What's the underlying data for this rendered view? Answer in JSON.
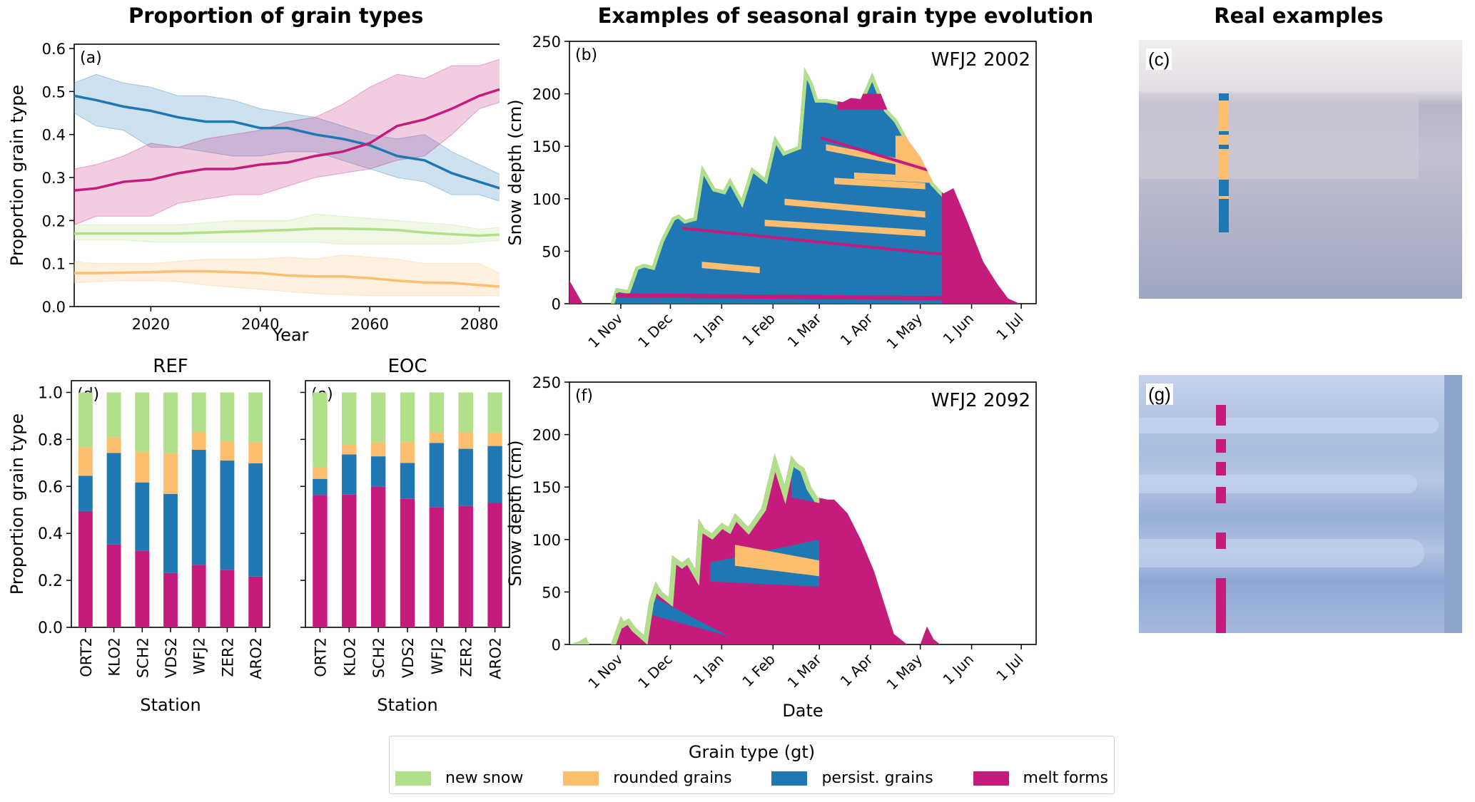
{
  "titles": {
    "left": "Proportion of grain types",
    "middle": "Examples of seasonal grain type evolution",
    "right": "Real examples"
  },
  "colors": {
    "new_snow": "#b2df8a",
    "rounded_grains": "#fdbf6f",
    "persist_grains": "#1f78b4",
    "melt_forms": "#c51b7d"
  },
  "legend": {
    "title": "Grain type (gt)",
    "items": [
      {
        "key": "new_snow",
        "label": "new snow"
      },
      {
        "key": "rounded_grains",
        "label": "rounded grains"
      },
      {
        "key": "persist_grains",
        "label": "persist. grains"
      },
      {
        "key": "melt_forms",
        "label": "melt forms"
      }
    ]
  },
  "photos": {
    "c": {
      "label": "(c)",
      "profile_colors": [
        "persist_grains",
        "rounded_grains",
        "persist_grains",
        "rounded_grains",
        "persist_grains",
        "rounded_grains",
        "persist_grains",
        "rounded_grains",
        "persist_grains"
      ],
      "profile_fractions": [
        0.05,
        0.22,
        0.03,
        0.07,
        0.03,
        0.22,
        0.12,
        0.02,
        0.24
      ]
    },
    "g": {
      "label": "(g)",
      "profile_segments": [
        [
          0.0,
          0.09
        ],
        [
          0.15,
          0.21
        ],
        [
          0.25,
          0.31
        ],
        [
          0.36,
          0.43
        ],
        [
          0.56,
          0.63
        ],
        [
          0.76,
          1.0
        ]
      ]
    }
  },
  "chart_data": [
    {
      "id": "a",
      "panel_label": "(a)",
      "type": "line",
      "title": "",
      "xlabel": "Year",
      "ylabel": "Proportion grain type",
      "xlim": [
        2006,
        2085
      ],
      "ylim": [
        0.0,
        0.61
      ],
      "xticks": [
        2020,
        2040,
        2060,
        2080
      ],
      "yticks": [
        0.0,
        0.1,
        0.2,
        0.3,
        0.4,
        0.5,
        0.6
      ],
      "ytick_labels": [
        "0.0",
        "0.1",
        "0.2",
        "0.3",
        "0.4",
        "0.5",
        "0.6"
      ],
      "x": [
        2006,
        2010,
        2015,
        2020,
        2025,
        2030,
        2035,
        2040,
        2045,
        2050,
        2055,
        2060,
        2065,
        2070,
        2075,
        2080,
        2085
      ],
      "series": [
        {
          "name": "persist. grains",
          "color_key": "persist_grains",
          "values": [
            0.49,
            0.48,
            0.465,
            0.455,
            0.44,
            0.43,
            0.43,
            0.415,
            0.415,
            0.4,
            0.39,
            0.375,
            0.35,
            0.34,
            0.31,
            0.29,
            0.27
          ],
          "upper": [
            0.52,
            0.54,
            0.52,
            0.51,
            0.49,
            0.49,
            0.48,
            0.46,
            0.45,
            0.44,
            0.42,
            0.4,
            0.39,
            0.4,
            0.36,
            0.33,
            0.3
          ],
          "lower": [
            0.45,
            0.42,
            0.41,
            0.37,
            0.37,
            0.36,
            0.35,
            0.35,
            0.36,
            0.36,
            0.34,
            0.32,
            0.3,
            0.29,
            0.26,
            0.26,
            0.24
          ]
        },
        {
          "name": "melt forms",
          "color_key": "melt_forms",
          "values": [
            0.27,
            0.275,
            0.29,
            0.295,
            0.31,
            0.32,
            0.32,
            0.33,
            0.335,
            0.35,
            0.36,
            0.38,
            0.42,
            0.435,
            0.46,
            0.49,
            0.51
          ],
          "upper": [
            0.32,
            0.33,
            0.35,
            0.38,
            0.37,
            0.39,
            0.4,
            0.41,
            0.43,
            0.44,
            0.47,
            0.51,
            0.54,
            0.53,
            0.56,
            0.56,
            0.58
          ],
          "lower": [
            0.19,
            0.21,
            0.21,
            0.21,
            0.24,
            0.25,
            0.26,
            0.26,
            0.28,
            0.3,
            0.31,
            0.32,
            0.34,
            0.35,
            0.4,
            0.46,
            0.48
          ]
        },
        {
          "name": "new snow",
          "color_key": "new_snow",
          "values": [
            0.17,
            0.17,
            0.17,
            0.17,
            0.17,
            0.172,
            0.174,
            0.176,
            0.178,
            0.181,
            0.181,
            0.18,
            0.178,
            0.172,
            0.168,
            0.165,
            0.168
          ],
          "upper": [
            0.19,
            0.19,
            0.19,
            0.19,
            0.19,
            0.195,
            0.2,
            0.2,
            0.2,
            0.215,
            0.21,
            0.205,
            0.2,
            0.195,
            0.19,
            0.18,
            0.185
          ],
          "lower": [
            0.155,
            0.155,
            0.155,
            0.15,
            0.15,
            0.15,
            0.15,
            0.15,
            0.15,
            0.15,
            0.145,
            0.145,
            0.145,
            0.145,
            0.145,
            0.15,
            0.155
          ]
        },
        {
          "name": "rounded grains",
          "color_key": "rounded_grains",
          "values": [
            0.078,
            0.078,
            0.079,
            0.08,
            0.082,
            0.082,
            0.08,
            0.078,
            0.072,
            0.07,
            0.07,
            0.066,
            0.06,
            0.056,
            0.055,
            0.05,
            0.045
          ],
          "upper": [
            0.105,
            0.1,
            0.1,
            0.1,
            0.105,
            0.11,
            0.11,
            0.11,
            0.115,
            0.11,
            0.12,
            0.115,
            0.11,
            0.1,
            0.1,
            0.1,
            0.07
          ],
          "lower": [
            0.055,
            0.058,
            0.06,
            0.06,
            0.058,
            0.05,
            0.045,
            0.04,
            0.035,
            0.03,
            0.028,
            0.025,
            0.025,
            0.025,
            0.025,
            0.025,
            0.025
          ]
        }
      ]
    },
    {
      "id": "b",
      "panel_label": "(b)",
      "annotation": "WFJ2 2002",
      "type": "area",
      "xlabel": "",
      "ylabel": "Snow depth (cm)",
      "ylim": [
        0,
        250
      ],
      "yticks": [
        0,
        50,
        100,
        150,
        200,
        250
      ],
      "xtick_labels": [
        "1 Nov",
        "1 Dec",
        "1 Jan",
        "1 Feb",
        "1 Mar",
        "1 Apr",
        "1 May",
        "1 Jun",
        "1 Jul"
      ],
      "x_days_from_oct1": [
        0,
        8,
        25,
        28,
        35,
        40,
        45,
        50,
        55,
        62,
        66,
        70,
        75,
        80,
        88,
        93,
        97,
        104,
        110,
        118,
        124,
        130,
        138,
        142,
        147,
        150,
        155,
        165,
        170,
        176,
        183,
        192,
        198,
        205,
        212,
        220,
        226,
        232,
        240,
        245,
        250,
        258,
        265,
        272,
        278
      ],
      "total_depth": [
        22,
        0,
        0,
        15,
        13,
        35,
        38,
        36,
        60,
        82,
        85,
        80,
        82,
        132,
        110,
        108,
        120,
        100,
        130,
        120,
        160,
        145,
        150,
        225,
        210,
        195,
        195,
        192,
        196,
        195,
        220,
        185,
        175,
        155,
        140,
        115,
        105,
        110,
        80,
        60,
        40,
        20,
        5,
        0,
        0
      ],
      "layers_description": "Mostly persistent grains (blue) with rounded-grain bands (orange) in Feb–May, thin melt-form crusts (magenta) near 8 cm and ~60→45 cm, new snow on top of each accumulation, wet snow (melt forms) dominates from mid-May to early July",
      "melt_onset_day": 225
    },
    {
      "id": "d",
      "panel_label": "(d)",
      "type": "bar",
      "stacked": true,
      "title": "REF",
      "xlabel": "Station",
      "ylabel": "Proportion grain type",
      "ylim": [
        0,
        1.05
      ],
      "yticks": [
        0.0,
        0.2,
        0.4,
        0.6,
        0.8,
        1.0
      ],
      "ytick_labels": [
        "0.0",
        "0.2",
        "0.4",
        "0.6",
        "0.8",
        "1.0"
      ],
      "categories": [
        "ORT2",
        "KLO2",
        "SCH2",
        "VDS2",
        "WFJ2",
        "ZER2",
        "ARO2"
      ],
      "series": [
        {
          "name": "melt forms",
          "color_key": "melt_forms",
          "values": [
            0.495,
            0.353,
            0.327,
            0.231,
            0.266,
            0.245,
            0.216
          ]
        },
        {
          "name": "persist. grains",
          "color_key": "persist_grains",
          "values": [
            0.15,
            0.389,
            0.29,
            0.337,
            0.49,
            0.465,
            0.482
          ]
        },
        {
          "name": "rounded grains",
          "color_key": "rounded_grains",
          "values": [
            0.122,
            0.066,
            0.13,
            0.173,
            0.076,
            0.082,
            0.09
          ]
        },
        {
          "name": "new snow",
          "color_key": "new_snow",
          "values": [
            0.233,
            0.192,
            0.253,
            0.259,
            0.168,
            0.208,
            0.212
          ]
        }
      ]
    },
    {
      "id": "e",
      "panel_label": "(e)",
      "type": "bar",
      "stacked": true,
      "title": "EOC",
      "xlabel": "Station",
      "ylabel": "",
      "ylim": [
        0,
        1.05
      ],
      "yticks": [
        0.0,
        0.2,
        0.4,
        0.6,
        0.8,
        1.0
      ],
      "categories": [
        "ORT2",
        "KLO2",
        "SCH2",
        "VDS2",
        "WFJ2",
        "ZER2",
        "ARO2"
      ],
      "series": [
        {
          "name": "melt forms",
          "color_key": "melt_forms",
          "values": [
            0.564,
            0.565,
            0.599,
            0.547,
            0.512,
            0.517,
            0.531
          ]
        },
        {
          "name": "persist. grains",
          "color_key": "persist_grains",
          "values": [
            0.068,
            0.171,
            0.129,
            0.153,
            0.273,
            0.243,
            0.241
          ]
        },
        {
          "name": "rounded grains",
          "color_key": "rounded_grains",
          "values": [
            0.048,
            0.041,
            0.059,
            0.09,
            0.045,
            0.07,
            0.056
          ]
        },
        {
          "name": "new snow",
          "color_key": "new_snow",
          "values": [
            0.32,
            0.223,
            0.213,
            0.21,
            0.17,
            0.17,
            0.172
          ]
        }
      ]
    },
    {
      "id": "f",
      "panel_label": "(f)",
      "annotation": "WFJ2 2092",
      "type": "area",
      "xlabel": "Date",
      "ylabel": "Snow depth (cm)",
      "ylim": [
        0,
        250
      ],
      "yticks": [
        0,
        50,
        100,
        150,
        200,
        250
      ],
      "xtick_labels": [
        "1 Nov",
        "1 Dec",
        "1 Jan",
        "1 Feb",
        "1 Mar",
        "1 Apr",
        "1 May",
        "1 Jun",
        "1 Jul"
      ],
      "x_days_from_oct1": [
        0,
        6,
        10,
        12,
        25,
        31,
        33,
        36,
        40,
        45,
        48,
        52,
        56,
        60,
        62,
        68,
        72,
        76,
        78,
        82,
        86,
        92,
        96,
        100,
        108,
        116,
        124,
        130,
        134,
        138,
        142,
        146,
        150,
        156,
        160,
        168,
        176,
        184,
        190,
        196,
        204,
        212,
        216,
        220,
        224,
        256,
        280
      ],
      "total_depth": [
        0,
        3,
        7,
        0,
        0,
        27,
        22,
        25,
        16,
        9,
        40,
        60,
        50,
        45,
        85,
        78,
        83,
        72,
        120,
        110,
        106,
        116,
        112,
        125,
        112,
        130,
        182,
        152,
        180,
        172,
        168,
        150,
        140,
        138,
        138,
        125,
        100,
        70,
        40,
        10,
        0,
        0,
        17,
        5,
        0,
        0,
        0
      ],
      "layers_description": "Melt forms dominate most of the pack from mid-Dec; persistent and rounded grain bands in Jan–Mar above ~55 cm; pack melts out around end of April; small isolated snow events in May–June",
      "melt_onset_day": 151
    }
  ]
}
